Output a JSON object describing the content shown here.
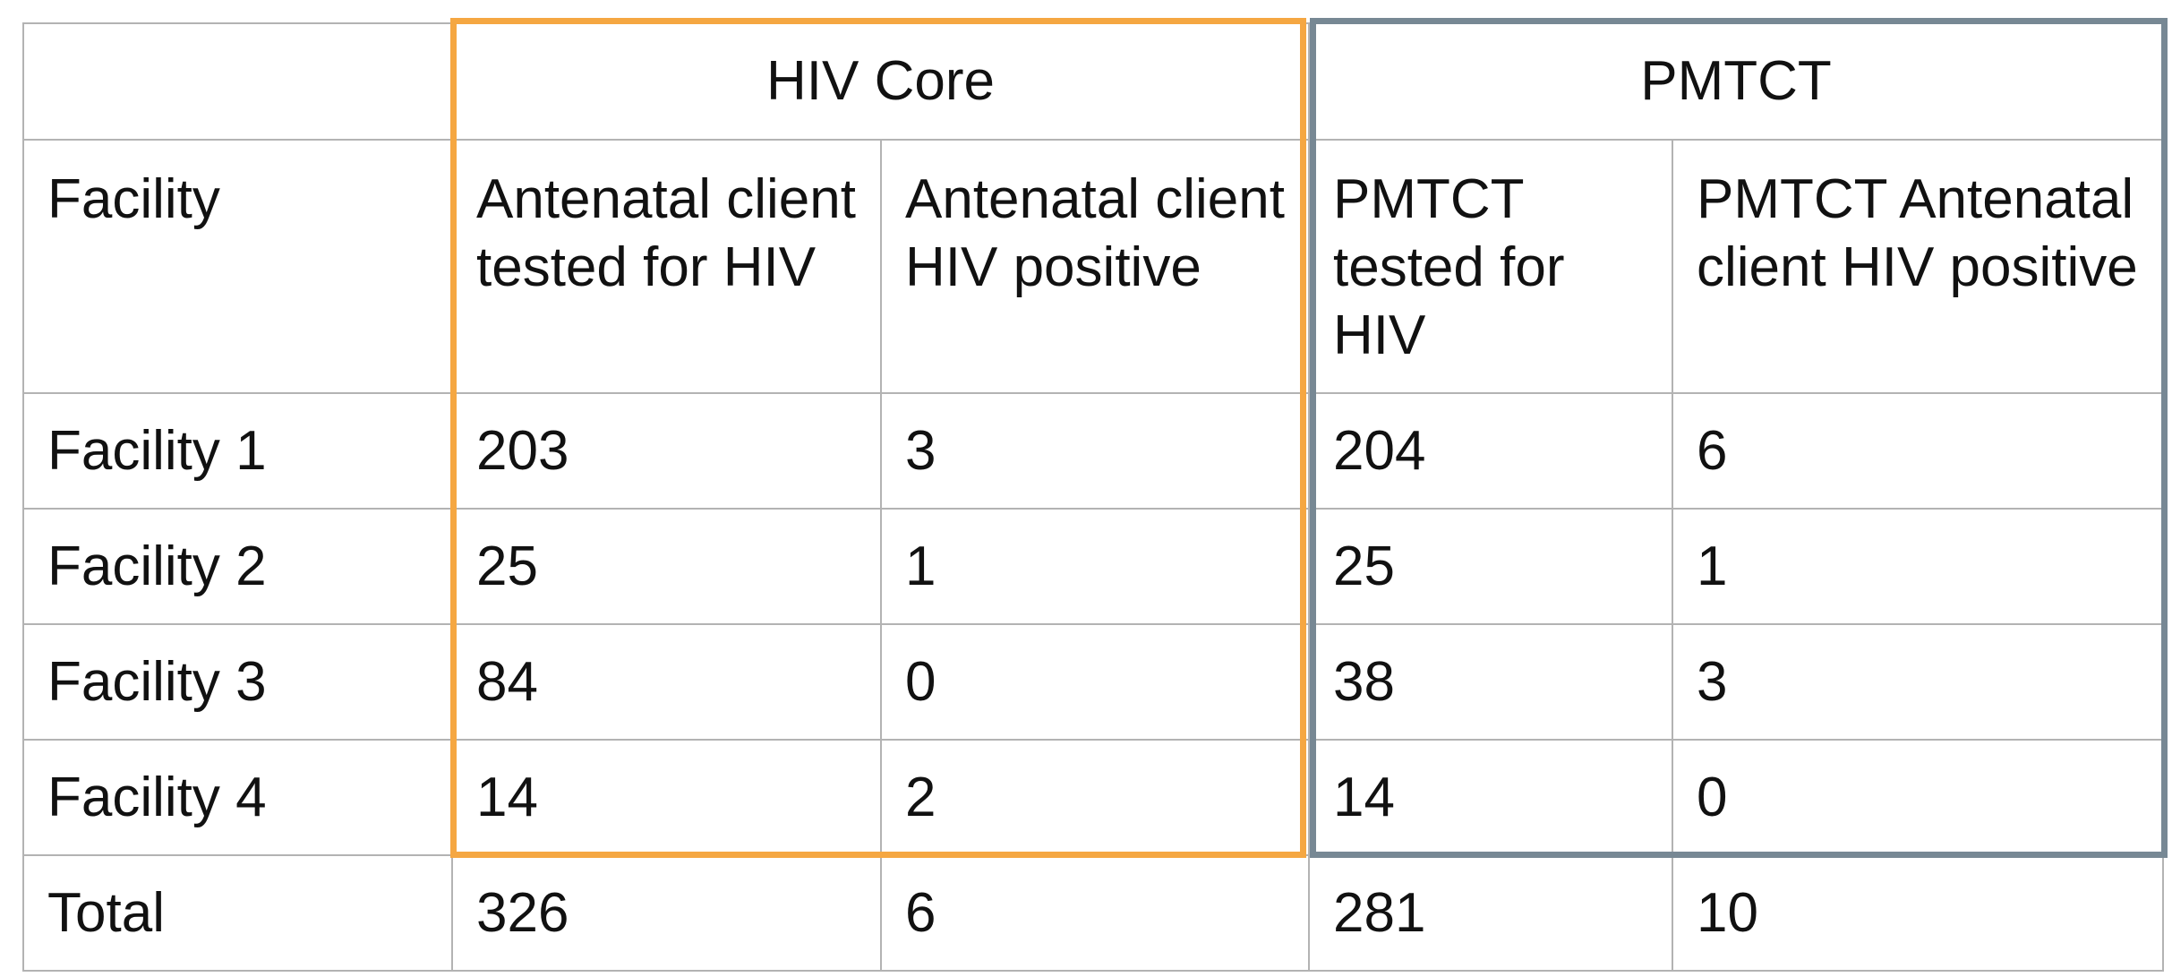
{
  "frame_colors": {
    "hiv_core": "#f5a742",
    "pmtct": "#778894"
  },
  "groups": {
    "hiv_core": "HIV Core",
    "pmtct": "PMTCT"
  },
  "headers": {
    "facility": "Facility",
    "col1": "Antenatal client tested for HIV",
    "col2": "Antenatal client HIV positive",
    "col3": "PMTCT tested for HIV",
    "col4": "PMTCT Antenatal client HIV positive"
  },
  "rows": [
    {
      "facility": "Facility 1",
      "c1": "203",
      "c2": "3",
      "c3": "204",
      "c4": "6"
    },
    {
      "facility": "Facility 2",
      "c1": "25",
      "c2": "1",
      "c3": "25",
      "c4": "1"
    },
    {
      "facility": "Facility 3",
      "c1": "84",
      "c2": "0",
      "c3": "38",
      "c4": "3"
    },
    {
      "facility": "Facility 4",
      "c1": "14",
      "c2": "2",
      "c3": "14",
      "c4": "0"
    }
  ],
  "total": {
    "label": "Total",
    "c1": "326",
    "c2": "6",
    "c3": "281",
    "c4": "10"
  }
}
